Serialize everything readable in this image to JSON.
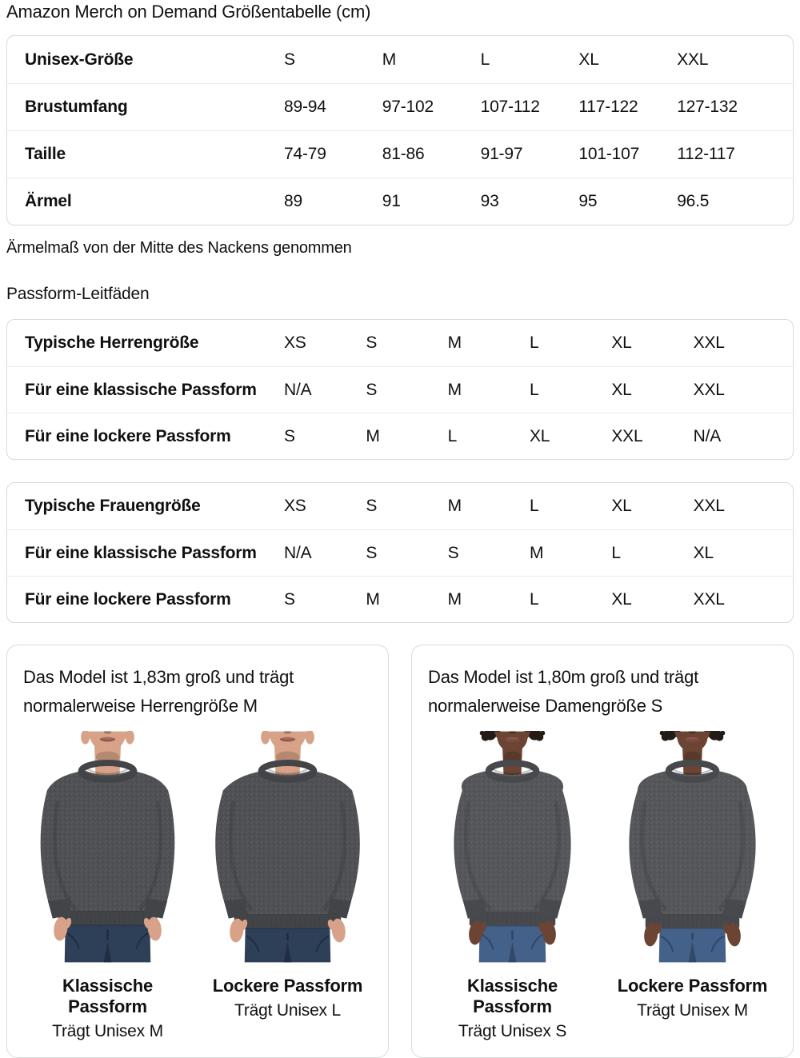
{
  "page": {
    "title": "Amazon Merch on Demand Größentabelle (cm)"
  },
  "size_table": {
    "rows": [
      {
        "label": "Unisex-Größe",
        "values": [
          "S",
          "M",
          "L",
          "XL",
          "XXL"
        ]
      },
      {
        "label": "Brustumfang",
        "values": [
          "89-94",
          "97-102",
          "107-112",
          "117-122",
          "127-132"
        ]
      },
      {
        "label": "Taille",
        "values": [
          "74-79",
          "81-86",
          "91-97",
          "101-107",
          "112-117"
        ]
      },
      {
        "label": "Ärmel",
        "values": [
          "89",
          "91",
          "93",
          "95",
          "96.5"
        ]
      }
    ]
  },
  "note": "Ärmelmaß von der Mitte des Nackens genommen",
  "fit_section": {
    "heading": "Passform-Leitfäden",
    "tables": [
      {
        "rows": [
          {
            "label": "Typische Herrengröße",
            "values": [
              "XS",
              "S",
              "M",
              "L",
              "XL",
              "XXL"
            ]
          },
          {
            "label": "Für eine klassische Passform",
            "values": [
              "N/A",
              "S",
              "M",
              "L",
              "XL",
              "XXL"
            ]
          },
          {
            "label": "Für eine lockere Passform",
            "values": [
              "S",
              "M",
              "L",
              "XL",
              "XXL",
              "N/A"
            ]
          }
        ]
      },
      {
        "rows": [
          {
            "label": "Typische Frauengröße",
            "values": [
              "XS",
              "S",
              "M",
              "L",
              "XL",
              "XXL"
            ]
          },
          {
            "label": "Für eine klassische Passform",
            "values": [
              "N/A",
              "S",
              "S",
              "M",
              "L",
              "XL"
            ]
          },
          {
            "label": "Für eine lockere Passform",
            "values": [
              "S",
              "M",
              "M",
              "L",
              "XL",
              "XXL"
            ]
          }
        ]
      }
    ]
  },
  "model_cards": [
    {
      "description": "Das Model ist 1,83m groß und trägt normalerweise Herrengröße M",
      "photos": [
        {
          "fit_label": "Klassische Passform",
          "size_label": "Trägt Unisex M",
          "model": "male",
          "fit": "classic"
        },
        {
          "fit_label": "Lockere Passform",
          "size_label": "Trägt Unisex L",
          "model": "male",
          "fit": "loose"
        }
      ]
    },
    {
      "description": "Das Model ist 1,80m groß und trägt normalerweise Damengröße S",
      "photos": [
        {
          "fit_label": "Klassische Passform",
          "size_label": "Trägt Unisex S",
          "model": "female",
          "fit": "classic"
        },
        {
          "fit_label": "Lockere Passform",
          "size_label": "Trägt Unisex M",
          "model": "female",
          "fit": "loose"
        }
      ]
    }
  ],
  "colors": {
    "text": "#0F1111",
    "card_border": "#D6DBDB",
    "row_divider": "#ECECEC",
    "photo_palette": {
      "male": {
        "skin": "#D7A287",
        "lip": "#A86A5C",
        "shirt": "#4F5054",
        "rib": "#434448",
        "jeans": "#2E3F58",
        "jeansDark": "#1E2B3E"
      },
      "female": {
        "skin": "#6B4433",
        "lip": "#8A564A",
        "hair": "#221B16",
        "shirt": "#55565A",
        "rib": "#48494D",
        "jeans": "#44618A",
        "jeansDark": "#2E4463"
      }
    }
  }
}
